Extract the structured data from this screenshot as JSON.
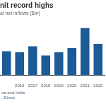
{
  "chart_data": {
    "type": "bar",
    "title": "nit record highs",
    "subtitle": "al net inflows ($m)",
    "categories": [
      null,
      "2016",
      "2017",
      "2018",
      "2019",
      "2020",
      "2021",
      "2022"
    ],
    "values": [
      40,
      38,
      48,
      33,
      38,
      45,
      78,
      52
    ],
    "color": "#1d5b96",
    "ylim": [
      0,
      90
    ],
    "grid": false,
    "tick_labels": "x",
    "annotations": [
      "na and India",
      ": Direct"
    ]
  }
}
